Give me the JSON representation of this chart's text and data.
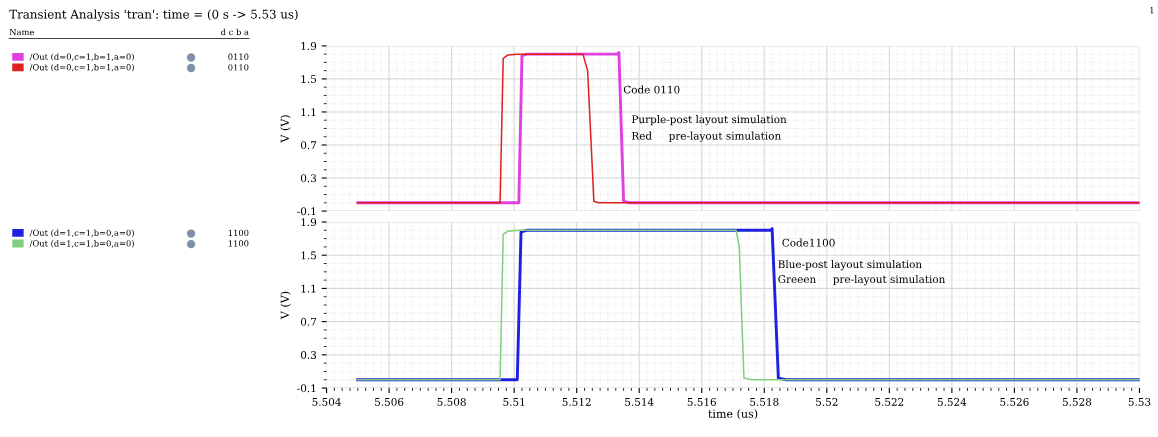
{
  "chart_data": [
    {
      "type": "line",
      "title": "Transient Analysis 'tran': time = (0 s -> 5.53 us)",
      "ylabel": "V (V)",
      "legend": "left",
      "grid": true,
      "tick_labels": "y",
      "xlim": [
        5.504,
        5.53
      ],
      "xticks": [
        5.504,
        5.506,
        5.508,
        5.51,
        5.512,
        5.514,
        5.516,
        5.518,
        5.52,
        5.522,
        5.524,
        5.526,
        5.528,
        5.53
      ],
      "ylim": [
        -0.1,
        1.9
      ],
      "yticks": [
        -0.1,
        0.3,
        0.7,
        1.1,
        1.5,
        1.9
      ],
      "series": [
        {
          "name": "/Out (d=0,c=1,b=1,a=0)",
          "color": "#e040e0",
          "x": [
            5.505,
            5.51015,
            5.51025,
            5.5104,
            5.5133,
            5.51335,
            5.5135,
            5.5137,
            5.53
          ],
          "values": [
            0,
            0,
            1.78,
            1.8,
            1.8,
            1.82,
            0.02,
            0,
            0
          ]
        },
        {
          "name": "/Out (d=0,c=1,b=1,a=0)",
          "color": "#e02020",
          "x": [
            5.505,
            5.50955,
            5.50965,
            5.5098,
            5.5101,
            5.5122,
            5.51235,
            5.51255,
            5.5127,
            5.513,
            5.53
          ],
          "values": [
            0,
            0,
            1.75,
            1.79,
            1.8,
            1.8,
            1.6,
            0.02,
            0,
            0,
            0
          ]
        }
      ],
      "annotations": [
        "Code 0110",
        "Purple-post layout simulation",
        "Red     pre-layout simulation",
        "Name",
        "d c b a",
        "0110",
        "0110",
        "1"
      ]
    },
    {
      "type": "line",
      "ylabel": "V (V)",
      "xlabel": "time (us)",
      "legend": "left",
      "grid": true,
      "xlim": [
        5.504,
        5.53
      ],
      "xticks": [
        5.504,
        5.506,
        5.508,
        5.51,
        5.512,
        5.514,
        5.516,
        5.518,
        5.52,
        5.522,
        5.524,
        5.526,
        5.528,
        5.53
      ],
      "ylim": [
        -0.1,
        1.9
      ],
      "yticks": [
        -0.1,
        0.3,
        0.7,
        1.1,
        1.5,
        1.9
      ],
      "series": [
        {
          "name": "/Out (d=1,c=1,b=0,a=0)",
          "color": "#2020e0",
          "x": [
            5.505,
            5.5101,
            5.51022,
            5.5104,
            5.5182,
            5.51825,
            5.51845,
            5.5187,
            5.53
          ],
          "values": [
            0,
            0,
            1.78,
            1.8,
            1.8,
            1.82,
            0.02,
            0,
            0
          ]
        },
        {
          "name": "/Out (d=1,c=1,b=0,a=0)",
          "color": "#80d080",
          "x": [
            5.505,
            5.50955,
            5.50965,
            5.5098,
            5.5102,
            5.5171,
            5.5172,
            5.51735,
            5.5176,
            5.53
          ],
          "values": [
            0,
            0,
            1.75,
            1.79,
            1.8,
            1.8,
            1.6,
            0.02,
            0,
            0
          ]
        }
      ],
      "annotations": [
        "Code1100",
        "Blue-post layout simulation",
        "Greeen     pre-layout simulation",
        "1100",
        "1100"
      ]
    }
  ]
}
